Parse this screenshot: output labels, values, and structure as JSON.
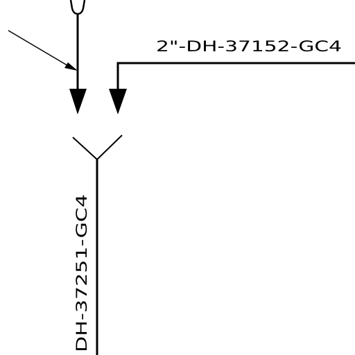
{
  "drawing": {
    "line_labels": {
      "horizontal_branch": "2\"-DH-37152-GC4",
      "vertical_main": "DH-37251-GC4"
    },
    "colors": {
      "background": "#ffffff",
      "ink": "#000000"
    }
  }
}
